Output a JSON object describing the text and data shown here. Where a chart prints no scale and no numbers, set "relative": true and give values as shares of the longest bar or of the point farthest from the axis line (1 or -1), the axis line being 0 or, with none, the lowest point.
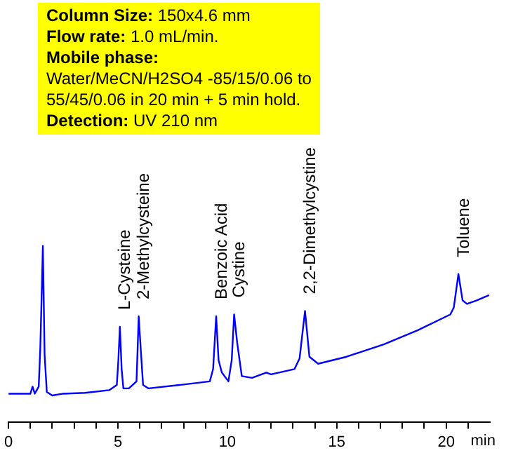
{
  "chart_data": {
    "type": "line",
    "relative": true,
    "marker": "none",
    "legend": false,
    "annotations": [
      "Column Size: 150x4.6 mm",
      "Flow rate: 1.0 mL/min.",
      "Mobile phase:",
      "Water/MeCN/H2SO4 -85/15/0.06 to",
      "55/45/0.06 in 20 min + 5 min hold.",
      "Detection: UV 210 nm",
      {
        "text": "L-Cysteine",
        "x": 5.09,
        "y": 0.54
      },
      {
        "text": "2-Methylcysteine",
        "x": 5.95,
        "y": 0.6
      },
      {
        "text": "Benzoic Acid",
        "x": 9.49,
        "y": 0.6
      },
      {
        "text": "Cystine",
        "x": 10.31,
        "y": 0.61
      },
      {
        "text": "2,2-Dimethylcystine",
        "x": 13.55,
        "y": 0.63
      },
      {
        "text": "Toluene",
        "x": 20.56,
        "y": 0.84
      }
    ],
    "xlabel": "min",
    "xlim": [
      0,
      22
    ],
    "xticks": [
      0,
      {
        "value": 1,
        "label": null
      },
      {
        "value": 2,
        "label": null
      },
      {
        "value": 3,
        "label": null
      },
      {
        "value": 4,
        "label": null
      },
      5,
      {
        "value": 6,
        "label": null
      },
      {
        "value": 7,
        "label": null
      },
      {
        "value": 8,
        "label": null
      },
      {
        "value": 9,
        "label": null
      },
      10,
      {
        "value": 11,
        "label": null
      },
      {
        "value": 12,
        "label": null
      },
      {
        "value": 13,
        "label": null
      },
      {
        "value": 14,
        "label": null
      },
      15,
      {
        "value": 16,
        "label": null
      },
      {
        "value": 17,
        "label": null
      },
      {
        "value": 18,
        "label": null
      },
      {
        "value": 19,
        "label": null
      },
      20,
      {
        "value": 21,
        "label": null
      }
    ],
    "x": [
      0,
      1.0,
      1.1,
      1.2,
      1.38,
      1.45,
      1.52,
      1.57,
      1.65,
      1.75,
      2.0,
      2.5,
      3.5,
      4.6,
      4.95,
      5.02,
      5.09,
      5.17,
      5.25,
      5.5,
      5.85,
      5.95,
      6.05,
      6.15,
      6.4,
      7.87,
      9.2,
      9.35,
      9.49,
      9.6,
      9.75,
      10.05,
      10.2,
      10.31,
      10.45,
      10.66,
      11.13,
      11.78,
      12.0,
      13.07,
      13.3,
      13.55,
      13.75,
      14.15,
      15.45,
      17.15,
      18.69,
      20.19,
      20.35,
      20.56,
      20.75,
      20.95,
      21.4,
      21.96
    ],
    "series": [
      {
        "color": "#0000ff",
        "values": [
          0.16,
          0.16,
          0.2,
          0.16,
          0.2,
          0.41,
          0.74,
          1.0,
          0.38,
          0.17,
          0.15,
          0.16,
          0.165,
          0.18,
          0.21,
          0.35,
          0.54,
          0.3,
          0.19,
          0.19,
          0.23,
          0.6,
          0.4,
          0.21,
          0.19,
          0.21,
          0.23,
          0.3,
          0.6,
          0.35,
          0.28,
          0.23,
          0.35,
          0.61,
          0.45,
          0.26,
          0.25,
          0.28,
          0.27,
          0.3,
          0.36,
          0.63,
          0.37,
          0.33,
          0.37,
          0.44,
          0.52,
          0.61,
          0.65,
          0.84,
          0.69,
          0.67,
          0.69,
          0.72
        ]
      }
    ]
  }
}
